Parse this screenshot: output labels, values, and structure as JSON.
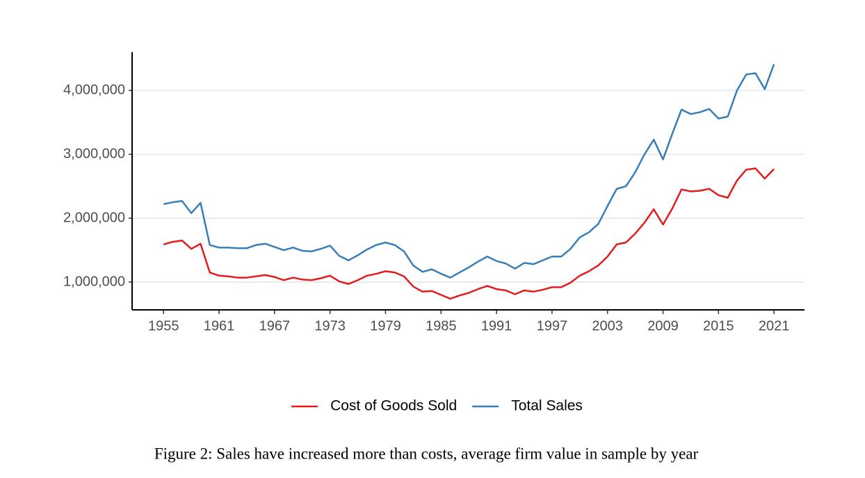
{
  "chart_data": {
    "type": "line",
    "caption": "Figure 2: Sales have increased more than costs, average firm value in sample by year",
    "x": [
      1955,
      1956,
      1957,
      1958,
      1959,
      1960,
      1961,
      1962,
      1963,
      1964,
      1965,
      1966,
      1967,
      1968,
      1969,
      1970,
      1971,
      1972,
      1973,
      1974,
      1975,
      1976,
      1977,
      1978,
      1979,
      1980,
      1981,
      1982,
      1983,
      1984,
      1985,
      1986,
      1987,
      1988,
      1989,
      1990,
      1991,
      1992,
      1993,
      1994,
      1995,
      1996,
      1997,
      1998,
      1999,
      2000,
      2001,
      2002,
      2003,
      2004,
      2005,
      2006,
      2007,
      2008,
      2009,
      2010,
      2011,
      2012,
      2013,
      2014,
      2015,
      2016,
      2017,
      2018,
      2019,
      2020,
      2021
    ],
    "series": [
      {
        "name": "Cost of Goods Sold",
        "color": "#e41a1c",
        "values": [
          1590000,
          1630000,
          1650000,
          1520000,
          1600000,
          1150000,
          1100000,
          1090000,
          1070000,
          1070000,
          1090000,
          1110000,
          1080000,
          1030000,
          1070000,
          1040000,
          1030000,
          1060000,
          1100000,
          1010000,
          970000,
          1030000,
          1100000,
          1130000,
          1170000,
          1150000,
          1090000,
          930000,
          850000,
          860000,
          800000,
          740000,
          790000,
          830000,
          890000,
          940000,
          890000,
          870000,
          810000,
          870000,
          850000,
          880000,
          920000,
          920000,
          990000,
          1100000,
          1170000,
          1260000,
          1400000,
          1590000,
          1620000,
          1760000,
          1930000,
          2140000,
          1900000,
          2150000,
          2450000,
          2420000,
          2430000,
          2460000,
          2360000,
          2320000,
          2590000,
          2760000,
          2780000,
          2620000,
          2770000
        ]
      },
      {
        "name": "Total Sales",
        "color": "#377eb8",
        "values": [
          2220000,
          2250000,
          2270000,
          2080000,
          2240000,
          1580000,
          1540000,
          1540000,
          1530000,
          1530000,
          1580000,
          1600000,
          1550000,
          1500000,
          1540000,
          1490000,
          1480000,
          1520000,
          1570000,
          1410000,
          1340000,
          1420000,
          1510000,
          1580000,
          1620000,
          1580000,
          1480000,
          1260000,
          1160000,
          1200000,
          1130000,
          1070000,
          1150000,
          1230000,
          1320000,
          1400000,
          1330000,
          1290000,
          1210000,
          1300000,
          1280000,
          1340000,
          1400000,
          1400000,
          1520000,
          1700000,
          1780000,
          1910000,
          2190000,
          2460000,
          2500000,
          2720000,
          3000000,
          3230000,
          2920000,
          3320000,
          3700000,
          3630000,
          3660000,
          3710000,
          3560000,
          3590000,
          4000000,
          4250000,
          4270000,
          4020000,
          4410000
        ]
      }
    ],
    "xlim": [
      1951.6,
      2024.3
    ],
    "ylim": [
      565000,
      4600000
    ],
    "xticks": [
      1955,
      1961,
      1967,
      1973,
      1979,
      1985,
      1991,
      1997,
      2003,
      2009,
      2015,
      2021
    ],
    "yticks": [
      {
        "value": 1000000,
        "label": "1,000,000"
      },
      {
        "value": 2000000,
        "label": "2,000,000"
      },
      {
        "value": 3000000,
        "label": "3,000,000"
      },
      {
        "value": 4000000,
        "label": "4,000,000"
      }
    ],
    "grid": true,
    "legend": "bottom"
  }
}
